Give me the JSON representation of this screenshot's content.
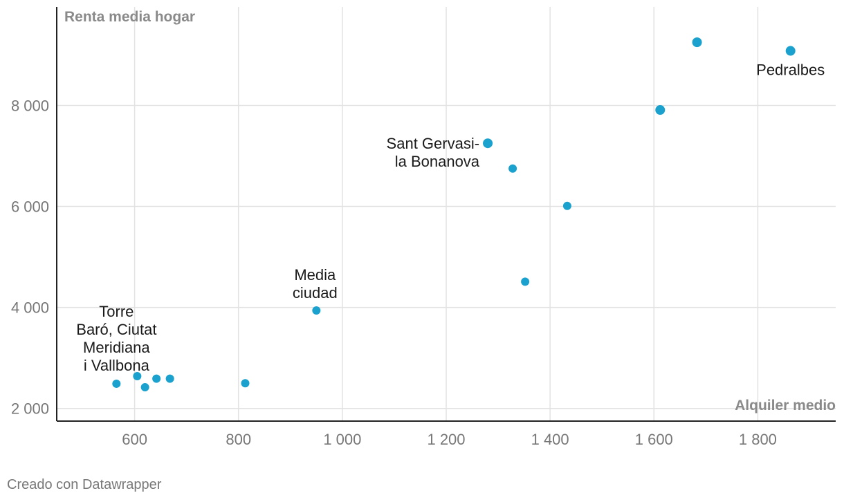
{
  "chart_data": {
    "type": "scatter",
    "xlabel": "Alquiler medio",
    "ylabel": "Renta media hogar",
    "xlim": [
      450,
      1950
    ],
    "ylim": [
      1750,
      9950
    ],
    "x_ticks": [
      600,
      800,
      1000,
      1200,
      1400,
      1600,
      1800
    ],
    "x_tick_labels": [
      "600",
      "800",
      "1 000",
      "1 200",
      "1 400",
      "1 600",
      "1 800"
    ],
    "y_ticks": [
      2000,
      4000,
      6000,
      8000
    ],
    "y_tick_labels": [
      "2 000",
      "4 000",
      "6 000",
      "8 000"
    ],
    "grid": true,
    "color": "#1aa1cd",
    "points": [
      {
        "x": 565,
        "y": 2490,
        "label": ""
      },
      {
        "x": 605,
        "y": 2640,
        "label": "Torre Baró, Ciutat Meridiana i Vallbona"
      },
      {
        "x": 620,
        "y": 2420,
        "label": ""
      },
      {
        "x": 642,
        "y": 2590,
        "label": ""
      },
      {
        "x": 668,
        "y": 2590,
        "label": ""
      },
      {
        "x": 813,
        "y": 2500,
        "label": ""
      },
      {
        "x": 950,
        "y": 3940,
        "label": "Media ciudad"
      },
      {
        "x": 1280,
        "y": 7250,
        "label": "Sant Gervasi- la Bonanova"
      },
      {
        "x": 1328,
        "y": 6750,
        "label": ""
      },
      {
        "x": 1352,
        "y": 4510,
        "label": ""
      },
      {
        "x": 1433,
        "y": 6010,
        "label": ""
      },
      {
        "x": 1612,
        "y": 7910,
        "label": ""
      },
      {
        "x": 1683,
        "y": 9250,
        "label": ""
      },
      {
        "x": 1863,
        "y": 9080,
        "label": "Pedralbes"
      }
    ],
    "annotations": [
      {
        "lines": [
          "Torre",
          "Baró, Ciutat",
          "Meridiana",
          "i Vallbona"
        ],
        "point": 1
      },
      {
        "lines": [
          "Media",
          "ciudad"
        ],
        "point": 6
      },
      {
        "lines": [
          "Sant Gervasi-",
          "la Bonanova"
        ],
        "point": 7
      },
      {
        "lines": [
          "Pedralbes"
        ],
        "point": 13
      }
    ]
  },
  "footer": {
    "credit": "Creado con Datawrapper"
  }
}
